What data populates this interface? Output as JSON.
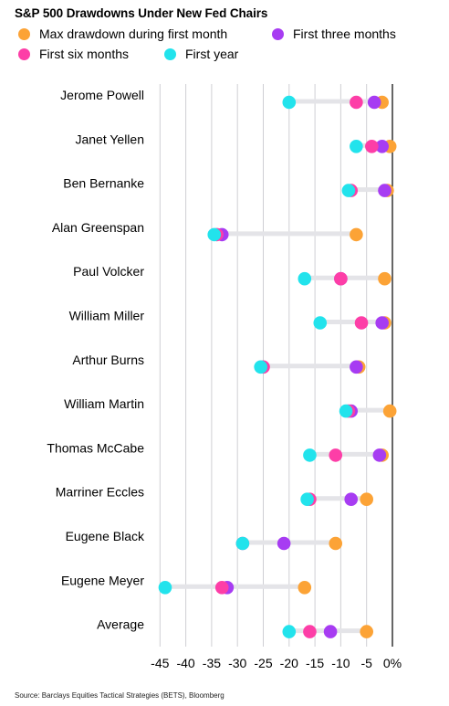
{
  "title": "S&P 500 Drawdowns Under New Fed Chairs",
  "source": "Source: Barclays Equities Tactical Strategies (BETS), Bloomberg",
  "colors": {
    "max_first_month": "#fca336",
    "first_three_months": "#a73cf2",
    "first_six_months": "#fd3ea7",
    "first_year": "#22e3ec",
    "connector": "#e4e4e8",
    "grid": "#cfcfd4",
    "zero_line": "#000000"
  },
  "legend": [
    {
      "key": "max_first_month",
      "label": "Max drawdown during first month"
    },
    {
      "key": "first_three_months",
      "label": "First three months"
    },
    {
      "key": "first_six_months",
      "label": "First six months"
    },
    {
      "key": "first_year",
      "label": "First year"
    }
  ],
  "chart_data": {
    "type": "scatter",
    "title": "S&P 500 Drawdowns Under New Fed Chairs",
    "xlabel": "",
    "ylabel": "",
    "x_range": [
      -45,
      0
    ],
    "x_ticks": [
      "-45",
      "-40",
      "-35",
      "-30",
      "-25",
      "-20",
      "-15",
      "-10",
      "-5",
      "0%"
    ],
    "tick_values": [
      -45,
      -40,
      -35,
      -30,
      -25,
      -20,
      -15,
      -10,
      -5,
      0
    ],
    "grid": true,
    "legend_position": "top",
    "categories": [
      "Jerome Powell",
      "Janet Yellen",
      "Ben Bernanke",
      "Alan Greenspan",
      "Paul Volcker",
      "William Miller",
      "Arthur Burns",
      "William Martin",
      "Thomas McCabe",
      "Marriner Eccles",
      "Eugene Black",
      "Eugene Meyer",
      "Average"
    ],
    "series": [
      {
        "name": "Max drawdown during first month",
        "key": "max_first_month",
        "values": [
          -2,
          -0.5,
          -1,
          -7,
          -1.5,
          -1.5,
          -6.5,
          -0.5,
          -2,
          -5,
          -11,
          -17,
          -5
        ]
      },
      {
        "name": "First three months",
        "key": "first_three_months",
        "values": [
          -3.5,
          -2,
          -1.5,
          -33,
          -10,
          -2,
          -7,
          -8,
          -2.5,
          -8,
          -21,
          -32,
          -12
        ]
      },
      {
        "name": "First six months",
        "key": "first_six_months",
        "values": [
          -7,
          -4,
          -8,
          -34,
          -10,
          -6,
          -25,
          -8.5,
          -11,
          -16,
          -29,
          -33,
          -16
        ]
      },
      {
        "name": "First year",
        "key": "first_year",
        "values": [
          -20,
          -7,
          -8.5,
          -34.5,
          -17,
          -14,
          -25.5,
          -9,
          -16,
          -16.5,
          -29,
          -44,
          -20
        ]
      }
    ]
  }
}
